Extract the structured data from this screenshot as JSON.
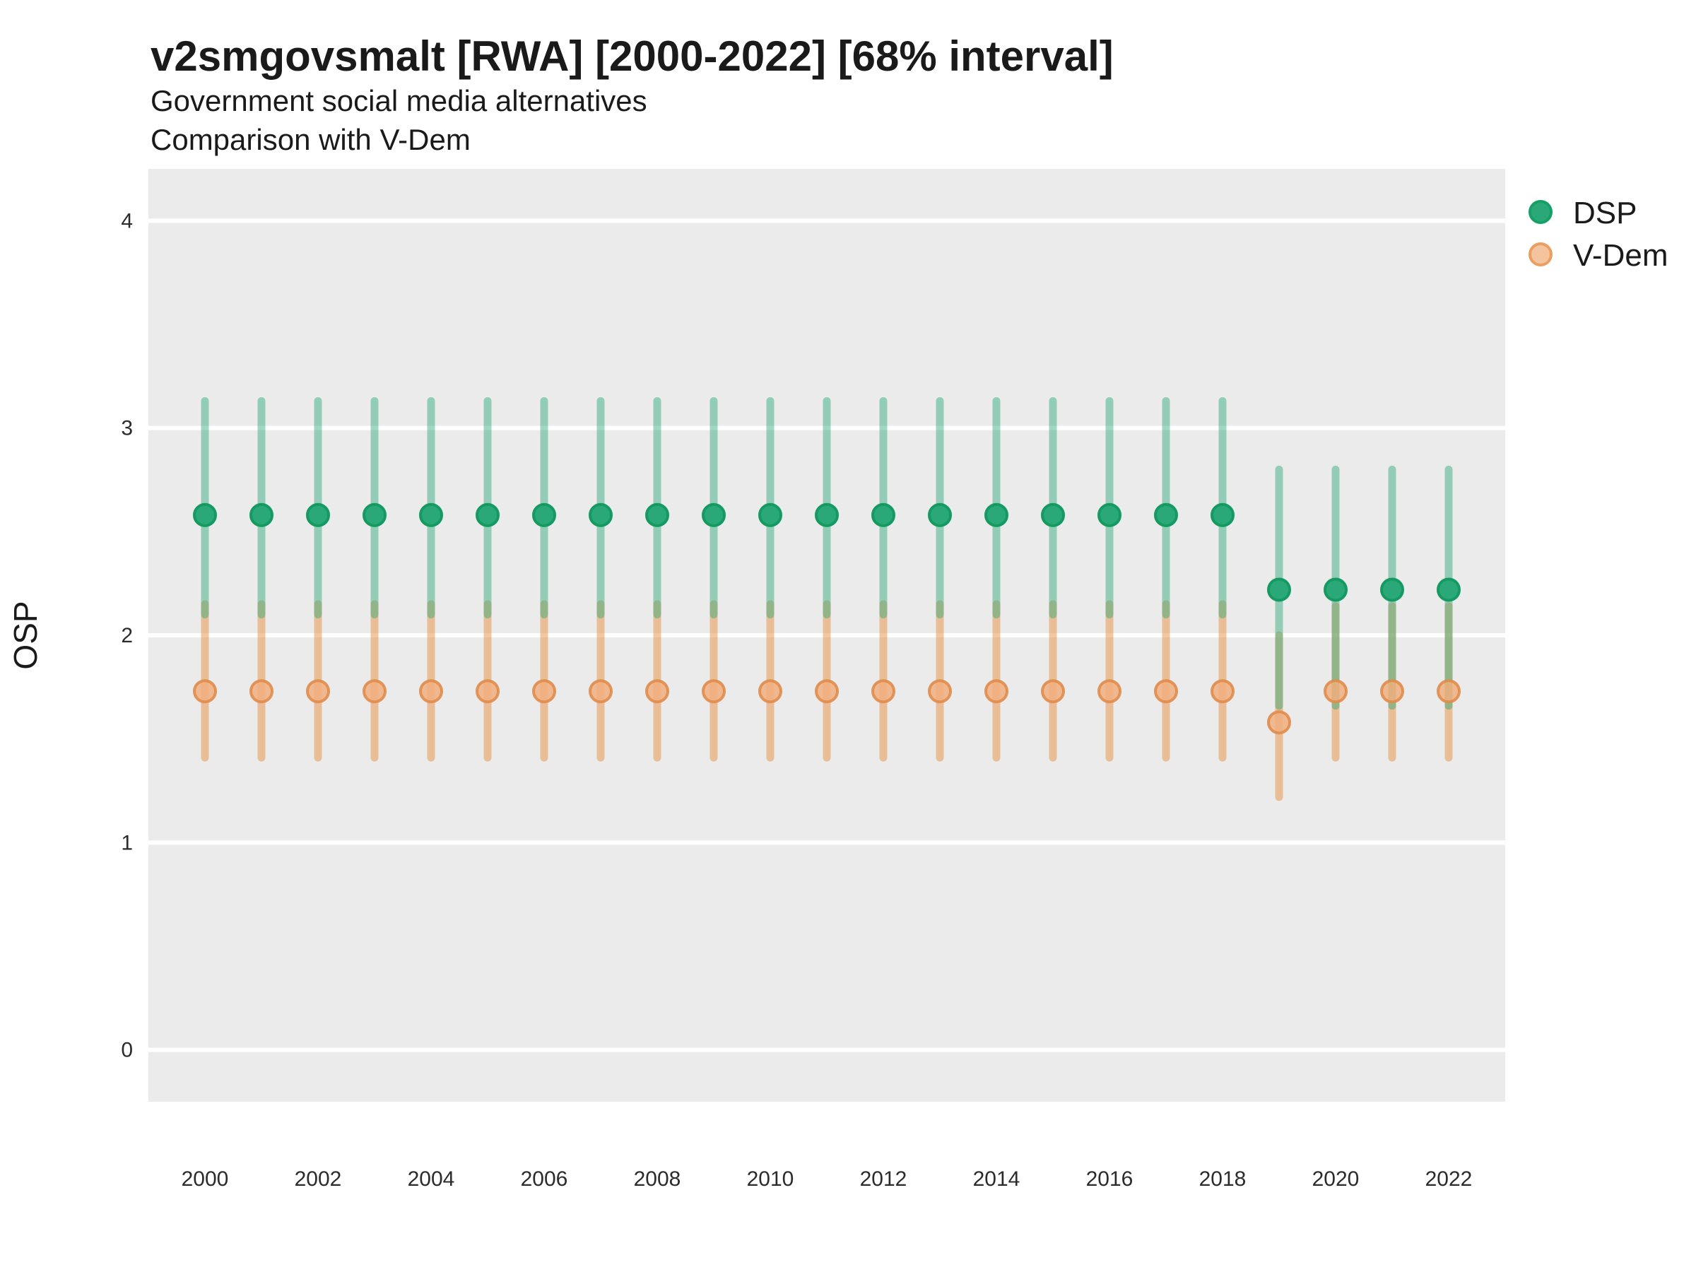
{
  "header": {
    "title": "v2smgovsmalt [RWA] [2000-2022] [68% interval]",
    "subtitle1": "Government social media alternatives",
    "subtitle2": "Comparison with V-Dem"
  },
  "axes": {
    "y_title": "OSP",
    "y_ticks": [
      0,
      1,
      2,
      3,
      4
    ],
    "x_ticks": [
      2000,
      2002,
      2004,
      2006,
      2008,
      2010,
      2012,
      2014,
      2016,
      2018,
      2020,
      2022
    ]
  },
  "legend": {
    "items": [
      {
        "label": "DSP",
        "fill": "#2BA877",
        "stroke": "#15A066"
      },
      {
        "label": "V-Dem",
        "fill": "#F3C49E",
        "stroke": "#EC9E61"
      }
    ]
  },
  "colors": {
    "panel_bg": "#EBEBEB",
    "gridline": "#FFFFFF",
    "dsp_point_fill": "#2BA877",
    "dsp_point_stroke": "#159A63",
    "dsp_line": "rgba(43,168,119,0.45)",
    "vdem_point_fill": "rgba(240,175,126,0.85)",
    "vdem_point_stroke": "rgba(224,140,77,0.9)",
    "vdem_line": "rgba(231,143,63,0.5)"
  },
  "chart_data": {
    "type": "scatter",
    "title": "v2smgovsmalt [RWA] [2000-2022] [68% interval]",
    "subtitle": "Government social media alternatives — Comparison with V-Dem",
    "xlabel": "",
    "ylabel": "OSP",
    "xlim": [
      1999,
      2023
    ],
    "ylim": [
      -0.25,
      4.25
    ],
    "grid": "major-horizontal-white-on-gray",
    "legend_position": "right",
    "interval_note": "68% interval shown as vertical error bars",
    "x": [
      2000,
      2001,
      2002,
      2003,
      2004,
      2005,
      2006,
      2007,
      2008,
      2009,
      2010,
      2011,
      2012,
      2013,
      2014,
      2015,
      2016,
      2017,
      2018,
      2019,
      2020,
      2021,
      2022
    ],
    "series": [
      {
        "name": "DSP",
        "est": [
          2.58,
          2.58,
          2.58,
          2.58,
          2.58,
          2.58,
          2.58,
          2.58,
          2.58,
          2.58,
          2.58,
          2.58,
          2.58,
          2.58,
          2.58,
          2.58,
          2.58,
          2.58,
          2.58,
          2.22,
          2.22,
          2.22,
          2.22
        ],
        "lower": [
          2.1,
          2.1,
          2.1,
          2.1,
          2.1,
          2.1,
          2.1,
          2.1,
          2.1,
          2.1,
          2.1,
          2.1,
          2.1,
          2.1,
          2.1,
          2.1,
          2.1,
          2.1,
          2.1,
          1.66,
          1.66,
          1.66,
          1.66
        ],
        "upper": [
          3.13,
          3.13,
          3.13,
          3.13,
          3.13,
          3.13,
          3.13,
          3.13,
          3.13,
          3.13,
          3.13,
          3.13,
          3.13,
          3.13,
          3.13,
          3.13,
          3.13,
          3.13,
          3.13,
          2.8,
          2.8,
          2.8,
          2.8
        ]
      },
      {
        "name": "V-Dem",
        "est": [
          1.73,
          1.73,
          1.73,
          1.73,
          1.73,
          1.73,
          1.73,
          1.73,
          1.73,
          1.73,
          1.73,
          1.73,
          1.73,
          1.73,
          1.73,
          1.73,
          1.73,
          1.73,
          1.73,
          1.58,
          1.73,
          1.73,
          1.73
        ],
        "lower": [
          1.41,
          1.41,
          1.41,
          1.41,
          1.41,
          1.41,
          1.41,
          1.41,
          1.41,
          1.41,
          1.41,
          1.41,
          1.41,
          1.41,
          1.41,
          1.41,
          1.41,
          1.41,
          1.41,
          1.22,
          1.41,
          1.41,
          1.41
        ],
        "upper": [
          2.15,
          2.15,
          2.15,
          2.15,
          2.15,
          2.15,
          2.15,
          2.15,
          2.15,
          2.15,
          2.15,
          2.15,
          2.15,
          2.15,
          2.15,
          2.15,
          2.15,
          2.15,
          2.15,
          2.0,
          2.14,
          2.14,
          2.14
        ]
      }
    ]
  }
}
